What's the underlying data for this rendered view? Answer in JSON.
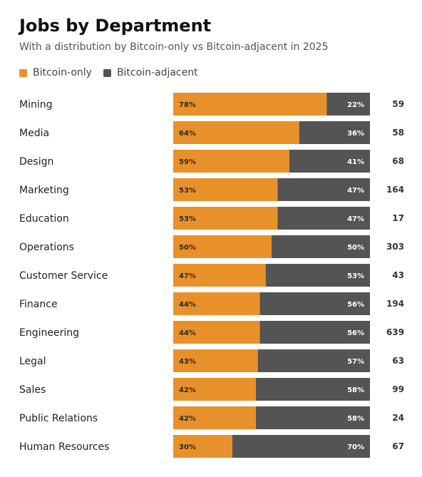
{
  "chart_data": {
    "type": "bar",
    "orientation": "horizontal",
    "stacked": "100%",
    "title": "Jobs by Department",
    "subtitle": "With a distribution by Bitcoin-only vs Bitcoin-adjacent in 2025",
    "legend_placement": "top-left",
    "categories": [
      "Mining",
      "Media",
      "Design",
      "Marketing",
      "Education",
      "Operations",
      "Customer Service",
      "Finance",
      "Engineering",
      "Legal",
      "Sales",
      "Public Relations",
      "Human Resources"
    ],
    "series": [
      {
        "name": "Bitcoin-only",
        "color": "#E8912A",
        "values": [
          78,
          64,
          59,
          53,
          53,
          50,
          47,
          44,
          44,
          43,
          42,
          42,
          30
        ]
      },
      {
        "name": "Bitcoin-adjacent",
        "color": "#545454",
        "values": [
          22,
          36,
          41,
          47,
          47,
          50,
          53,
          56,
          56,
          57,
          58,
          58,
          70
        ]
      }
    ],
    "totals": [
      59,
      58,
      68,
      164,
      17,
      303,
      43,
      194,
      639,
      63,
      99,
      24,
      67
    ],
    "value_suffix": "%"
  }
}
